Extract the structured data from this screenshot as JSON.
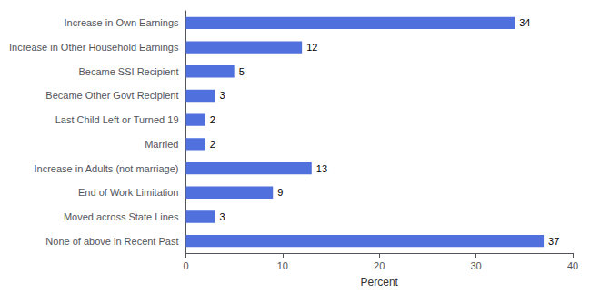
{
  "chart_data": {
    "type": "bar",
    "orientation": "horizontal",
    "categories": [
      "None of above in Recent Past",
      "Moved across State Lines",
      "End of Work Limitation",
      "Increase in Adults (not marriage)",
      "Married",
      "Last Child Left or Turned 19",
      "Became Other Govt Recipient",
      "Became SSI Recipient",
      "Increase in Other Household Earnings",
      "Increase in Own Earnings"
    ],
    "values": [
      37,
      3,
      9,
      13,
      2,
      2,
      3,
      5,
      12,
      34
    ],
    "xlabel": "Percent",
    "xlim": [
      0,
      40
    ],
    "xticks": [
      0,
      10,
      20,
      30,
      40
    ],
    "data_labels": true,
    "grid": false
  }
}
